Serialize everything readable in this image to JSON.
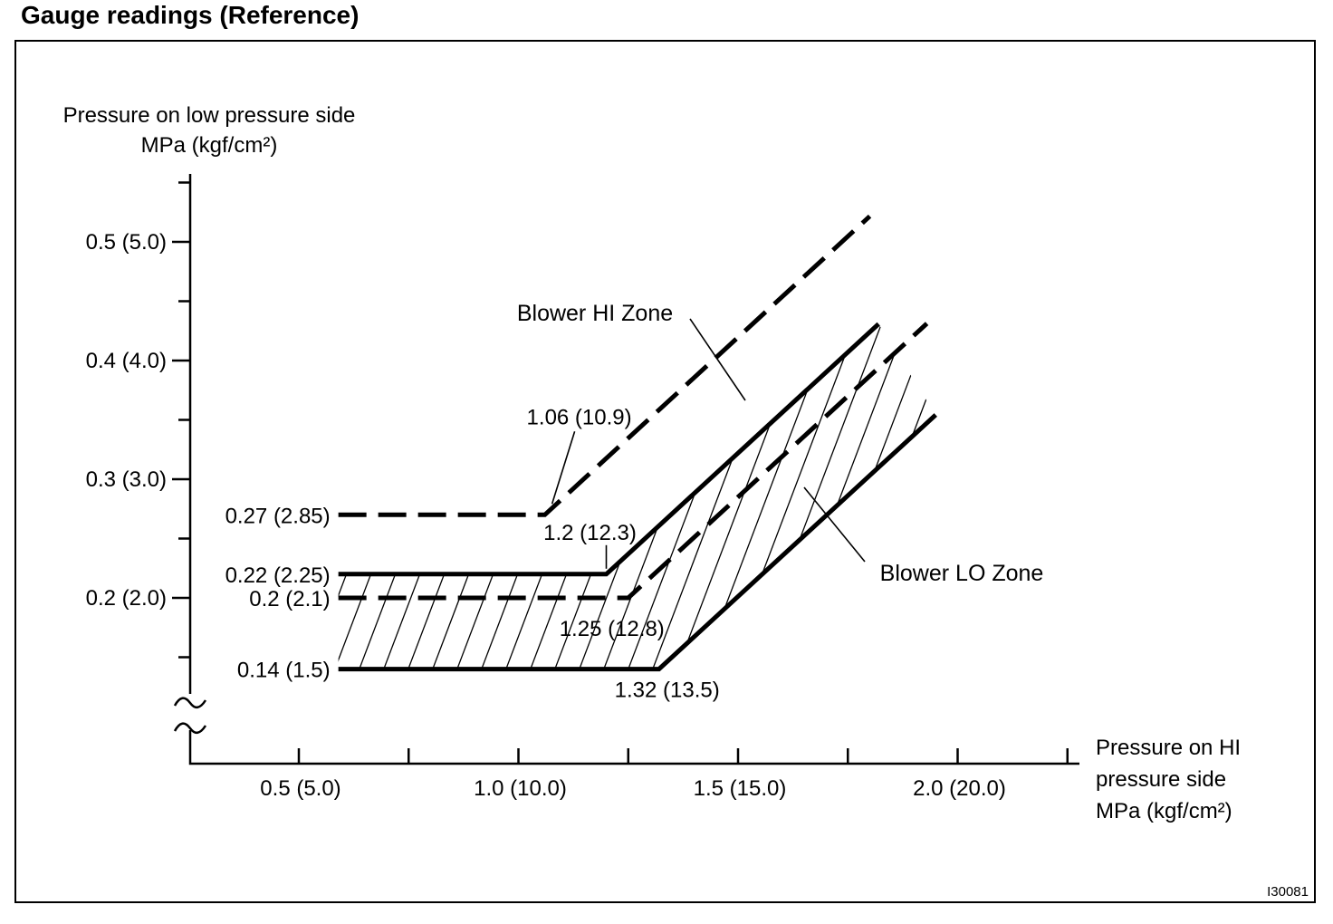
{
  "page": {
    "title": "Gauge readings (Reference)",
    "figure_id": "I30081"
  },
  "chart_data": {
    "type": "line",
    "title": "Gauge readings (Reference)",
    "x_axis": {
      "label_lines": [
        "Pressure on HI",
        "pressure side",
        "MPa (kgf/cm²)"
      ],
      "unit": "MPa (kgf/cm²)",
      "range": [
        0.5,
        2.25
      ],
      "ticks": [
        {
          "value": 0.5,
          "label": "0.5 (5.0)"
        },
        {
          "value": 1.0,
          "label": "1.0 (10.0)"
        },
        {
          "value": 1.5,
          "label": "1.5 (15.0)"
        },
        {
          "value": 2.0,
          "label": "2.0 (20.0)"
        }
      ],
      "minor_ticks": [
        0.75,
        1.25,
        1.75,
        2.25
      ]
    },
    "y_axis": {
      "label_lines": [
        "Pressure on low pressure side",
        "MPa (kgf/cm²)"
      ],
      "unit": "MPa (kgf/cm²)",
      "range": [
        0.14,
        0.55
      ],
      "axis_break": true,
      "ticks": [
        {
          "value": 0.5,
          "label": "0.5 (5.0)"
        },
        {
          "value": 0.4,
          "label": "0.4 (4.0)"
        },
        {
          "value": 0.3,
          "label": "0.3 (3.0)"
        },
        {
          "value": 0.2,
          "label": "0.2 (2.0)"
        }
      ],
      "minor_ticks": [
        0.55,
        0.45,
        0.35,
        0.25,
        0.15
      ]
    },
    "slope_low_per_high": 0.34,
    "series": [
      {
        "id": "blower-hi-upper-limit",
        "zone": "Blower HI Zone",
        "style": "dashed",
        "flat_y": 0.27,
        "flat_label": "0.27 (2.85)",
        "bend_x": 1.06,
        "bend_label": "1.06 (10.9)",
        "flat_start_x": 0.59,
        "end_x": 1.8
      },
      {
        "id": "blower-lo-upper-limit",
        "zone": "Blower LO Zone",
        "style": "solid",
        "flat_y": 0.22,
        "flat_label": "0.22 (2.25)",
        "bend_x": 1.2,
        "bend_label": "1.2 (12.3)",
        "flat_start_x": 0.59,
        "end_x": 1.82
      },
      {
        "id": "blower-hi-lower-limit",
        "zone": "Blower HI Zone",
        "style": "dashed",
        "flat_y": 0.2,
        "flat_label": "0.2 (2.1)",
        "bend_x": 1.25,
        "bend_label": "1.25 (12.8)",
        "flat_start_x": 0.59,
        "end_x": 1.93
      },
      {
        "id": "blower-lo-lower-limit",
        "zone": "Blower LO Zone",
        "style": "solid",
        "flat_y": 0.14,
        "flat_label": "0.14 (1.5)",
        "bend_x": 1.32,
        "bend_label": "1.32 (13.5)",
        "flat_start_x": 0.59,
        "end_x": 1.95
      }
    ],
    "zones": [
      {
        "label": "Blower HI Zone",
        "boundary_style": "dashed",
        "hatched": false
      },
      {
        "label": "Blower LO Zone",
        "boundary_style": "solid",
        "hatched": true
      }
    ]
  }
}
